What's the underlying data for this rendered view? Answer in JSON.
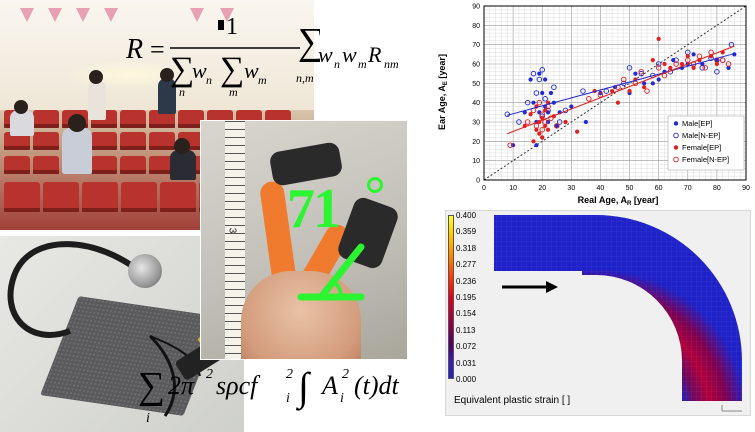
{
  "formula_top": {
    "lhs": "R",
    "equals": "=",
    "numerator": "1",
    "den_w_n": "w",
    "den_sub_n": "n",
    "den_w_m": "w",
    "den_sub_m": "m",
    "sum_sub_n": "n",
    "sum_sub_m": "m",
    "rhs_body": "w",
    "rhs_sub1": "n",
    "rhs_w2": "w",
    "rhs_sub2": "m",
    "rhs_R": "R",
    "rhs_subR": "nm",
    "rhs_sum_sub": "n,m"
  },
  "formula_bottom": {
    "sum_sub": "i",
    "coef": "2π",
    "exp2": "2",
    "mid": "sρcf",
    "f_sub": "i",
    "f_exp": "2",
    "A": "A",
    "A_sub": "i",
    "A_exp": "2",
    "tail": "(t)dt"
  },
  "finger_photo": {
    "angle_text": "71",
    "ruler_digit": "3"
  },
  "chart_data": {
    "type": "scatter",
    "xlabel": "Real Age, A",
    "xlabel_sub": "R",
    "xlabel_unit": " [year]",
    "ylabel": "Ear Age, A",
    "ylabel_sub": "E",
    "ylabel_unit": " [year]",
    "xlim": [
      0,
      90
    ],
    "ylim": [
      0,
      90
    ],
    "xticks": [
      0,
      10,
      20,
      30,
      40,
      50,
      60,
      70,
      80,
      90
    ],
    "yticks": [
      0,
      10,
      20,
      30,
      40,
      50,
      60,
      70,
      80,
      90
    ],
    "grid": true,
    "diagonal": true,
    "legend_position": "bottom-right",
    "colors": {
      "male": "#1f2ad6",
      "female": "#e41d1d"
    },
    "series": [
      {
        "name": "Male[EP]",
        "marker": "filled",
        "color": "#1f2ad6",
        "x": [
          10,
          14,
          16,
          17,
          18,
          18,
          19,
          19,
          20,
          20,
          21,
          21,
          22,
          22,
          23,
          24,
          25,
          26,
          30,
          35,
          40,
          45,
          50,
          52,
          55,
          58,
          60,
          62,
          65,
          68,
          70,
          72,
          75,
          80,
          84,
          86
        ],
        "y": [
          18,
          35,
          52,
          40,
          18,
          30,
          55,
          35,
          22,
          45,
          38,
          52,
          30,
          35,
          45,
          40,
          28,
          35,
          38,
          30,
          45,
          48,
          45,
          55,
          50,
          50,
          52,
          56,
          62,
          58,
          60,
          65,
          60,
          62,
          58,
          65
        ]
      },
      {
        "name": "Male[N-EP]",
        "marker": "open",
        "color": "#1f2ad6",
        "x": [
          8,
          12,
          15,
          17,
          18,
          19,
          20,
          20,
          21,
          22,
          24,
          26,
          28,
          34,
          42,
          48,
          50,
          54,
          58,
          60,
          64,
          66,
          70,
          72,
          75,
          78,
          80,
          82,
          85
        ],
        "y": [
          34,
          30,
          40,
          55,
          45,
          52,
          33,
          57,
          42,
          36,
          48,
          30,
          36,
          46,
          46,
          50,
          58,
          55,
          54,
          60,
          56,
          62,
          66,
          60,
          58,
          63,
          56,
          62,
          70
        ]
      },
      {
        "name": "Female[EP]",
        "marker": "filled",
        "color": "#e41d1d",
        "x": [
          14,
          16,
          17,
          18,
          18,
          19,
          19,
          20,
          20,
          21,
          21,
          22,
          22,
          24,
          28,
          32,
          38,
          44,
          46,
          50,
          52,
          55,
          58,
          60,
          62,
          64,
          68,
          70,
          72,
          74,
          78,
          80,
          82
        ],
        "y": [
          28,
          34,
          20,
          26,
          38,
          30,
          24,
          32,
          22,
          36,
          28,
          40,
          26,
          33,
          30,
          25,
          46,
          46,
          40,
          46,
          52,
          48,
          62,
          73,
          60,
          58,
          60,
          64,
          58,
          62,
          64,
          60,
          66
        ]
      },
      {
        "name": "Female[N-EP]",
        "marker": "open",
        "color": "#e41d1d",
        "x": [
          9,
          15,
          17,
          18,
          19,
          20,
          20,
          21,
          22,
          23,
          25,
          36,
          40,
          46,
          48,
          52,
          54,
          56,
          60,
          62,
          66,
          70,
          72,
          74,
          76,
          78,
          80,
          82,
          84
        ],
        "y": [
          18,
          30,
          36,
          28,
          40,
          26,
          34,
          30,
          38,
          32,
          28,
          42,
          44,
          48,
          52,
          50,
          56,
          46,
          58,
          54,
          60,
          62,
          60,
          64,
          58,
          66,
          62,
          62,
          60
        ]
      }
    ]
  },
  "fem": {
    "legend_values": [
      "0.400",
      "0.359",
      "0.318",
      "0.277",
      "0.236",
      "0.195",
      "0.154",
      "0.113",
      "0.072",
      "0.031",
      "0.000"
    ],
    "legend_colors": [
      "#ffff30",
      "#ffd000",
      "#ffa000",
      "#ff6600",
      "#ff2a00",
      "#e0001a",
      "#b0003c",
      "#80004e",
      "#50006a",
      "#3a1fb0",
      "#1e22c8"
    ],
    "caption": "Equivalent plastic strain [  ]"
  }
}
